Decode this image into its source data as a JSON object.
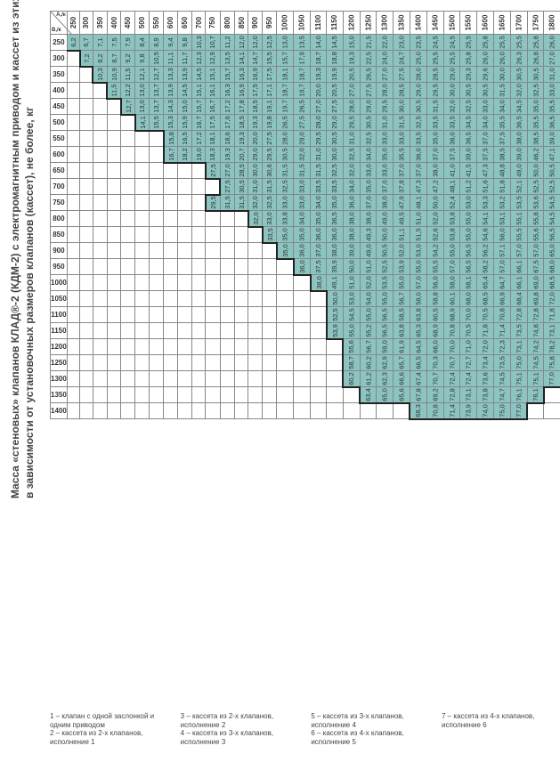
{
  "title_line1": "Масса «стеновых» клапанов КЛАД®-2 (КДМ-2) с электромагнитным приводом и кассет из этих клапанов",
  "title_line2": "в зависимости от установочных размеров клапанов (кассет), не более, кг",
  "corner_top": "A,/к",
  "corner_bot": "B,/к",
  "col_headers": [
    "250",
    "300",
    "350",
    "400",
    "450",
    "500",
    "550",
    "600",
    "650",
    "700",
    "750",
    "800",
    "850",
    "900",
    "950",
    "1000",
    "1050",
    "1100",
    "1150",
    "1200",
    "1250",
    "1300",
    "1350",
    "1400",
    "1450",
    "1500",
    "1550",
    "1600",
    "1650",
    "1700",
    "1750",
    "1800",
    "1850",
    "1900",
    "1950",
    "2000"
  ],
  "row_headers": [
    "250",
    "300",
    "350",
    "400",
    "450",
    "500",
    "550",
    "600",
    "650",
    "700",
    "750",
    "800",
    "850",
    "900",
    "950",
    "1000",
    "1050",
    "1100",
    "1150",
    "1200",
    "1250",
    "1300",
    "1350",
    "1400"
  ],
  "cells": [
    [
      "6,2",
      "6,7",
      "7,1",
      "7,5",
      "7,9",
      "8,4",
      "8,9",
      "9,4",
      "9,8",
      "10,3",
      "10,7",
      "11,2",
      "12,0",
      "12,0",
      "12,5",
      "13,0",
      "13,5",
      "14,0",
      "14,5",
      "15,0",
      "21,5",
      "22,0",
      "23,0",
      "23,5",
      "24,5",
      "24,5",
      "25,5",
      "25,8",
      "25,5",
      "25,5",
      "25,8",
      "26,0",
      "26,3",
      "26,5",
      "26,8",
      "27,0"
    ],
    [
      "",
      "7,2",
      "8,2",
      "8,7",
      "9,2",
      "9,8",
      "10,5",
      "11,1",
      "11,7",
      "12,3",
      "12,9",
      "13,5",
      "14,1",
      "14,7",
      "15,5",
      "15,7",
      "17,9",
      "18,7",
      "18,8",
      "19,3",
      "22,5",
      "24,0",
      "24,7",
      "25,0",
      "25,5",
      "25,5",
      "25,8",
      "26,0",
      "26,0",
      "26,3",
      "26,8",
      "27,0",
      "27,5",
      "27,5",
      "27,8",
      "28,0"
    ],
    [
      "",
      "",
      "10,3",
      "10,9",
      "11,5",
      "12,1",
      "12,7",
      "13,3",
      "13,9",
      "14,5",
      "15,1",
      "15,7",
      "16,3",
      "16,9",
      "17,5",
      "18,1",
      "18,7",
      "19,3",
      "19,9",
      "20,5",
      "26,5",
      "27,0",
      "27,5",
      "28,0",
      "28,5",
      "29,0",
      "29,3",
      "29,6",
      "30,0",
      "30,5",
      "30,5",
      "31,0",
      "31,3",
      "31,8",
      "32,0",
      "32,3"
    ],
    [
      "",
      "",
      "",
      "11,5",
      "12,2",
      "13,0",
      "13,7",
      "13,9",
      "14,5",
      "15,1",
      "16,1",
      "16,3",
      "16,9",
      "17,5",
      "17,1",
      "18,7",
      "19,7",
      "20,0",
      "20,5",
      "27,0",
      "27,5",
      "28,0",
      "28,5",
      "29,0",
      "29,5",
      "30,0",
      "30,5",
      "30,5",
      "31,5",
      "32,0",
      "32,5",
      "33,0",
      "33,5",
      "34,0",
      "34,5",
      "35,0"
    ],
    [
      "",
      "",
      "",
      "",
      "12,7",
      "13,0",
      "13,7",
      "14,3",
      "15,0",
      "15,7",
      "16,7",
      "17,2",
      "17,8",
      "18,5",
      "19,1",
      "19,7",
      "26,5",
      "27,0",
      "27,5",
      "28,0",
      "29,0",
      "29,5",
      "30,0",
      "30,5",
      "31,5",
      "32,0",
      "32,5",
      "33,0",
      "34,0",
      "34,5",
      "35,0",
      "35,5",
      "36,5",
      "37,0",
      "37,5",
      "38,0"
    ],
    [
      "",
      "",
      "",
      "",
      "",
      "14,1",
      "15,5",
      "15,3",
      "15,9",
      "16,7",
      "17,5",
      "17,6",
      "18,5",
      "19,3",
      "19,8",
      "26,5",
      "27,5",
      "28,0",
      "29,0",
      "29,5",
      "30,5",
      "31,0",
      "31,5",
      "32,5",
      "33,5",
      "33,5",
      "34,5",
      "34,0",
      "35,5",
      "36,5",
      "35,5",
      "36,5",
      "37,0",
      "37,5",
      "37,5",
      "40,0"
    ],
    [
      "",
      "",
      "",
      "",
      "",
      "",
      "",
      "15,8",
      "16,5",
      "17,2",
      "18,1",
      "18,6",
      "19,3",
      "20,0",
      "27,5",
      "28,0",
      "29,0",
      "29,5",
      "30,5",
      "31,0",
      "32,5",
      "33,0",
      "33,0",
      "33,5",
      "35,0",
      "36,0",
      "36,5",
      "37,0",
      "37,5",
      "38,0",
      "38,5",
      "39,0",
      "41,0",
      "42,3",
      "43,5",
      "44,4"
    ],
    [
      "",
      "",
      "",
      "",
      "",
      "",
      "",
      "16,7",
      "18,2",
      "19,0",
      "18,3",
      "19,3",
      "20,7",
      "29,0",
      "29,5",
      "30,5",
      "32,0",
      "31,0",
      "30,0",
      "32,5",
      "34,0",
      "35,0",
      "35,5",
      "36,0",
      "37,0",
      "37,5",
      "39,0",
      "37,5",
      "38,5",
      "39,0",
      "46,2",
      "47,1",
      "48,0",
      "49,0",
      "48,7",
      "49,3"
    ],
    [
      "",
      "",
      "",
      "",
      "",
      "",
      "",
      "",
      "",
      "",
      "27,5",
      "27,0",
      "28,5",
      "30,0",
      "30,6",
      "31,5",
      "31,5",
      "31,5",
      "32,5",
      "32,0",
      "33,0",
      "33,0",
      "37,0",
      "37,0",
      "38,0",
      "41,0",
      "41,5",
      "47,3",
      "48,8",
      "49,0",
      "50,0",
      "50,5",
      "51,5",
      "51,9",
      "52,1",
      "52,4"
    ],
    [
      "",
      "",
      "",
      "",
      "",
      "",
      "",
      "",
      "",
      "",
      "",
      "27,5",
      "30,5",
      "31,0",
      "31,5",
      "32,5",
      "33,0",
      "33,5",
      "33,5",
      "34,0",
      "35,0",
      "37,0",
      "37,8",
      "47,3",
      "47,2",
      "48,1",
      "51,2",
      "51,6",
      "51,8",
      "52,1",
      "52,5",
      "52,5",
      "53,5",
      "53,8",
      "53,9",
      "65,8"
    ],
    [
      "",
      "",
      "",
      "",
      "",
      "",
      "",
      "",
      "",
      "",
      "29,5",
      "31,5",
      "31,5",
      "32,0",
      "32,5",
      "33,0",
      "33,0",
      "34,0",
      "35,0",
      "36,0",
      "37,0",
      "38,0",
      "47,9",
      "48,1",
      "50,0",
      "52,4",
      "53,0",
      "53,3",
      "53,2",
      "53,5",
      "53,6",
      "54,5",
      "55,0",
      "65,4",
      "65,7",
      "66,4"
    ],
    [
      "",
      "",
      "",
      "",
      "",
      "",
      "",
      "",
      "",
      "",
      "",
      "",
      "",
      "32,0",
      "33,0",
      "33,8",
      "34,0",
      "35,0",
      "36,5",
      "38,0",
      "38,0",
      "49,0",
      "49,5",
      "51,0",
      "52,0",
      "53,8",
      "55,0",
      "54,1",
      "53,1",
      "55,1",
      "55,8",
      "54,5",
      "65,5",
      "67,0",
      "67,8",
      "68,6"
    ],
    [
      "",
      "",
      "",
      "",
      "",
      "",
      "",
      "",
      "",
      "",
      "",
      "",
      "",
      "",
      "33,5",
      "35,0",
      "35,0",
      "36,0",
      "36,0",
      "38,0",
      "49,3",
      "50,0",
      "51,1",
      "51,5",
      "52,6",
      "53,8",
      "55,0",
      "54,6",
      "56,0",
      "55,5",
      "55,6",
      "56,5",
      "67,0",
      "67,0",
      "70,2",
      "71,4"
    ],
    [
      "",
      "",
      "",
      "",
      "",
      "",
      "",
      "",
      "",
      "",
      "",
      "",
      "",
      "",
      "",
      "35,0",
      "36,0",
      "37,0",
      "38,0",
      "39,0",
      "49,0",
      "50,5",
      "52,0",
      "53,0",
      "54,2",
      "55,0",
      "56,5",
      "56,2",
      "57,1",
      "57,0",
      "57,0",
      "65,0",
      "69,0",
      "69,0",
      "70,0",
      "73,1"
    ],
    [
      "",
      "",
      "",
      "",
      "",
      "",
      "",
      "",
      "",
      "",
      "",
      "",
      "",
      "",
      "",
      "",
      "36,0",
      "37,5",
      "39,9",
      "50,0",
      "51,0",
      "52,5",
      "53,9",
      "55,0",
      "55,5",
      "57,0",
      "56,5",
      "58,2",
      "57,0",
      "66,1",
      "67,5",
      "68,0",
      "70,5",
      "71,1",
      "73,6",
      "74,2"
    ],
    [
      "",
      "",
      "",
      "",
      "",
      "",
      "",
      "",
      "",
      "",
      "",
      "",
      "",
      "",
      "",
      "",
      "",
      "38,0",
      "49,1",
      "51,0",
      "52,0",
      "53,5",
      "55,0",
      "57,0",
      "56,0",
      "58,0",
      "58,1",
      "65,4",
      "64,7",
      "66,1",
      "69,0",
      "68,5",
      "72,1",
      "72,1",
      "73,1",
      "74,5"
    ],
    [
      "",
      "",
      "",
      "",
      "",
      "",
      "",
      "",
      "",
      "",
      "",
      "",
      "",
      "",
      "",
      "",
      "",
      "",
      "50,0",
      "53,0",
      "54,0",
      "55,0",
      "56,7",
      "58,0",
      "58,8",
      "60,1",
      "68,0",
      "68,5",
      "66,9",
      "68,4",
      "69,8",
      "72,0",
      "74,8",
      "72,9",
      "74,5",
      "78,8"
    ],
    [
      "",
      "",
      "",
      "",
      "",
      "",
      "",
      "",
      "",
      "",
      "",
      "",
      "",
      "",
      "",
      "",
      "",
      "",
      "52,5",
      "54,5",
      "55,0",
      "56,5",
      "58,5",
      "63,8",
      "60,5",
      "68,9",
      "70,0",
      "70,5",
      "70,8",
      "72,8",
      "72,8",
      "71,8",
      "73,5",
      "74,2",
      "74,4",
      "79,8"
    ],
    [
      "",
      "",
      "",
      "",
      "",
      "",
      "",
      "",
      "",
      "",
      "",
      "",
      "",
      "",
      "",
      "",
      "",
      "",
      "53,9",
      "55,0",
      "55,2",
      "56,5",
      "63,8",
      "65,3",
      "68,9",
      "70,8",
      "70,5",
      "71,8",
      "71,4",
      "73,5",
      "74,8",
      "73,1",
      "75,8",
      "74,5",
      "75,9",
      "77,4"
    ],
    [
      "",
      "",
      "",
      "",
      "",
      "",
      "",
      "",
      "",
      "",
      "",
      "",
      "",
      "",
      "",
      "",
      "",
      "",
      "",
      "55,6",
      "56,7",
      "59,0",
      "61,9",
      "64,5",
      "66,0",
      "70,0",
      "71,0",
      "72,0",
      "72,3",
      "73,1",
      "74,2",
      "78,2",
      "75,8",
      "77,8",
      "78,8",
      ""
    ],
    [
      "",
      "",
      "",
      "",
      "",
      "",
      "",
      "",
      "",
      "",
      "",
      "",
      "",
      "",
      "",
      "",
      "",
      "",
      "",
      "58,7",
      "60,2",
      "62,9",
      "65,7",
      "66,5",
      "70,3",
      "70,7",
      "72,7",
      "73,4",
      "73,5",
      "75,0",
      "74,5",
      "75,8",
      "76,1",
      "",
      "",
      ""
    ],
    [
      "",
      "",
      "",
      "",
      "",
      "",
      "",
      "",
      "",
      "",
      "",
      "",
      "",
      "",
      "",
      "",
      "",
      "",
      "",
      "60,2",
      "61,2",
      "62,3",
      "66,6",
      "67,4",
      "70,7",
      "72,4",
      "72,4",
      "73,6",
      "74,5",
      "75,1",
      "75,1",
      "77,0",
      "",
      "",
      "",
      ""
    ],
    [
      "",
      "",
      "",
      "",
      "",
      "",
      "",
      "",
      "",
      "",
      "",
      "",
      "",
      "",
      "",
      "",
      "",
      "",
      "",
      "",
      "63,4",
      "65,0",
      "65,6",
      "67,8",
      "69,2",
      "72,8",
      "73,1",
      "73,8",
      "74,7",
      "76,1",
      "76,1",
      "",
      "",
      "",
      "",
      ""
    ],
    [
      "",
      "",
      "",
      "",
      "",
      "",
      "",
      "",
      "",
      "",
      "",
      "",
      "",
      "",
      "",
      "",
      "",
      "",
      "",
      "",
      "",
      "",
      "",
      "68,3",
      "70,8",
      "71,4",
      "73,9",
      "74,0",
      "75,0",
      "77,0",
      "",
      "",
      "",
      "",
      "",
      ""
    ]
  ],
  "legend": [
    {
      "lines": [
        "1 – клапан с одной заслонкой и",
        "    одним приводом",
        "2 – кассета из 2-х клапанов,",
        "    исполнение 1"
      ]
    },
    {
      "lines": [
        "3 – кассета из 2-х клапанов,",
        "    исполнение 2",
        "4 – кассета из 3-х клапанов,",
        "    исполнение 3"
      ]
    },
    {
      "lines": [
        "5 – кассета из 3-х клапанов,",
        "    исполнение 4",
        "6 – кассета из 4-х клапанов,",
        "    исполнение 5"
      ]
    },
    {
      "lines": [
        "7 – кассета из 4-х клапанов,",
        "    исполнение 6"
      ]
    }
  ],
  "colors": {
    "fill": "#8bc4c0",
    "border": "#888888",
    "step": "#222222",
    "text": "#333333",
    "bg": "#ffffff"
  },
  "fontsize": {
    "title": 12,
    "header": 8,
    "cell": 7.5,
    "legend": 8
  }
}
